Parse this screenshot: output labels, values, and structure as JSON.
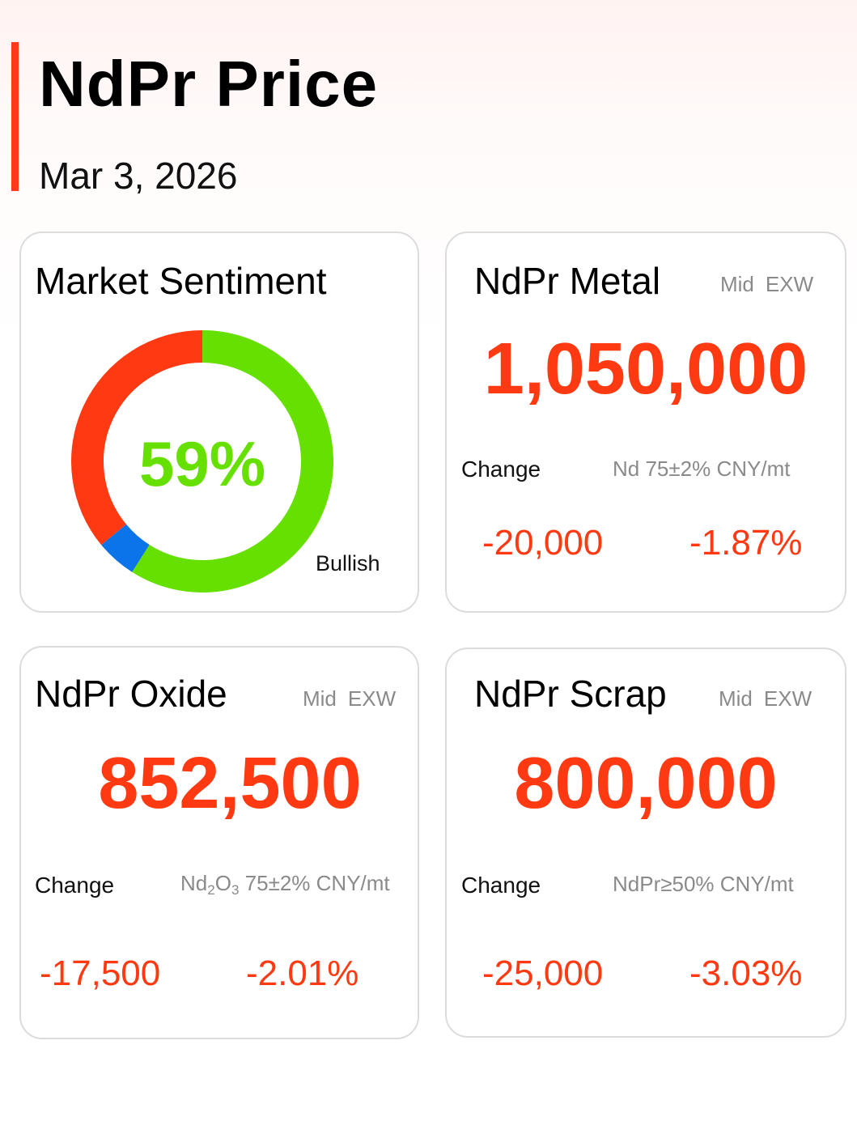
{
  "header": {
    "title": "NdPr Price",
    "date": "Mar 3, 2026"
  },
  "sentiment": {
    "title": "Market Sentiment",
    "percent_label": "59%",
    "label": "Bullish",
    "segments": [
      {
        "key": "bullish",
        "value": 59,
        "color": "#66e000"
      },
      {
        "key": "neutral",
        "value": 5,
        "color": "#0a74e8"
      },
      {
        "key": "bearish",
        "value": 36,
        "color": "#ff3a12"
      }
    ]
  },
  "metal": {
    "title": "NdPr Metal",
    "tag_mid": "Mid",
    "tag_exw": "EXW",
    "price": "1,050,000",
    "change_label": "Change",
    "spec": "Nd 75±2% CNY/mt",
    "change_abs": "-20,000",
    "change_pct": "-1.87%"
  },
  "oxide": {
    "title": "NdPr Oxide",
    "tag_mid": "Mid",
    "tag_exw": "EXW",
    "price": "852,500",
    "change_label": "Change",
    "spec_nd": "Nd",
    "spec_nd_sub": "2",
    "spec_o": "O",
    "spec_o_sub": "3",
    "spec_rest": " 75±2% CNY/mt",
    "change_abs": "-17,500",
    "change_pct": "-2.01%"
  },
  "scrap": {
    "title": "NdPr Scrap",
    "tag_mid": "Mid",
    "tag_exw": "EXW",
    "price": "800,000",
    "change_label": "Change",
    "spec": "NdPr≥50% CNY/mt",
    "change_abs": "-25,000",
    "change_pct": "-3.03%"
  },
  "colors": {
    "accent": "#ff3a17",
    "price": "#ff3a12",
    "bullish": "#66e000"
  }
}
